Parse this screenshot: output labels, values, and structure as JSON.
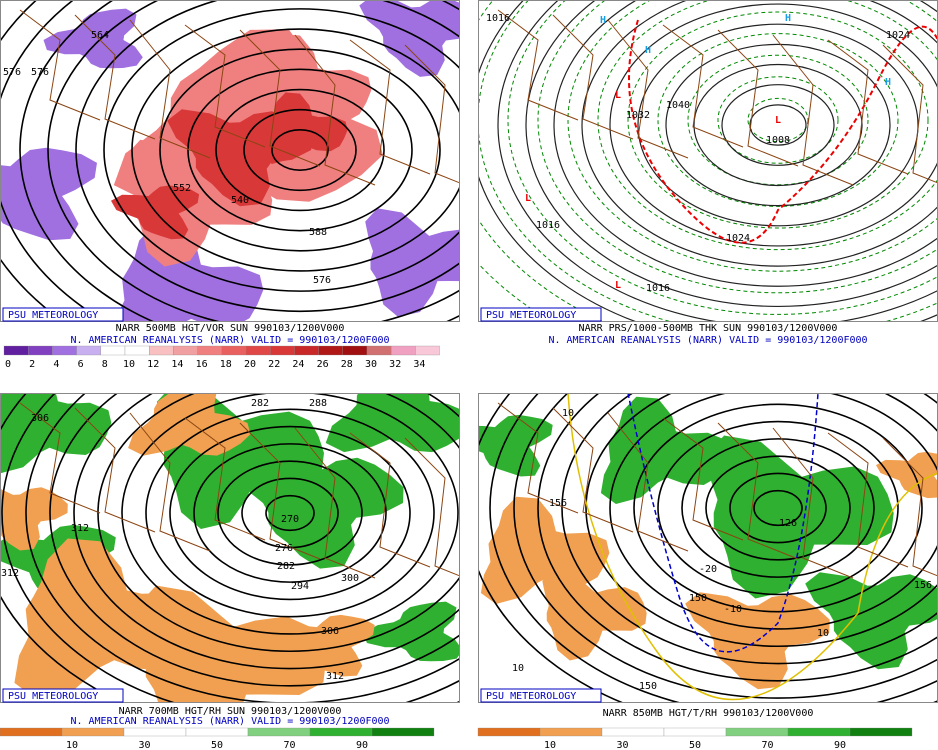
{
  "panels": [
    {
      "badge": "PSU METEOROLOGY",
      "caption": [
        "NARR 500MB HGT/VOR SUN 990103/1200V000",
        "N. AMERICAN REANALYSIS (NARR) VALID = 990103/1200F000"
      ],
      "colorbar": [
        0,
        2,
        4,
        6,
        8,
        10,
        12,
        14,
        16,
        18,
        20,
        22,
        24,
        26,
        28,
        30,
        32,
        34
      ],
      "labels": [
        "576",
        "564",
        "552",
        "540",
        "576",
        "588",
        "576"
      ]
    },
    {
      "badge": "PSU METEOROLOGY",
      "caption": [
        "NARR PRS/1000-500MB THK SUN 990103/1200V000",
        "N. AMERICAN REANALYSIS (NARR) VALID = 990103/1200F000"
      ],
      "labels": [
        "1016",
        "1024",
        "1040",
        "1032",
        "1008",
        "1016",
        "1016",
        "1024",
        "L",
        "L",
        "L",
        "L",
        "H",
        "H",
        "H",
        "H"
      ]
    },
    {
      "badge": "PSU METEOROLOGY",
      "caption": [
        "NARR 700MB HGT/RH SUN 990103/1200V000",
        "N. AMERICAN REANALYSIS (NARR) VALID = 990103/1200F000"
      ],
      "colorbar": [
        10,
        30,
        50,
        70,
        90
      ],
      "labels": [
        "306",
        "312",
        "312",
        "282",
        "288",
        "270",
        "276",
        "282",
        "294",
        "300",
        "306",
        "312"
      ]
    },
    {
      "badge": "PSU METEOROLOGY",
      "caption": [
        "NARR 850MB HGT/T/RH 990103/1200V000"
      ],
      "colorbar": [
        10,
        30,
        50,
        70,
        90
      ],
      "labels": [
        "156",
        "10",
        "-20",
        "-10",
        "150",
        "126",
        "10",
        "156",
        "10",
        "150"
      ]
    }
  ]
}
